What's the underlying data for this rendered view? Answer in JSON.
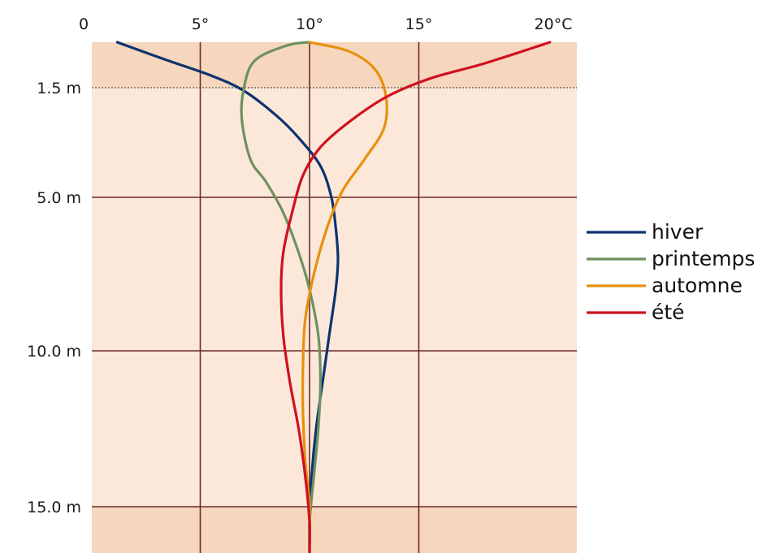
{
  "chart_data": {
    "type": "line",
    "title": "",
    "xlabel": "",
    "ylabel": "",
    "x_unit": "°C",
    "xlim": [
      0,
      20
    ],
    "ylim": [
      0,
      16.5
    ],
    "x_ticks": [
      {
        "value": 0,
        "label": "0"
      },
      {
        "value": 5,
        "label": "5°"
      },
      {
        "value": 10,
        "label": "10°"
      },
      {
        "value": 15,
        "label": "15°"
      },
      {
        "value": 20,
        "label": "20°C"
      }
    ],
    "y_ticks": [
      {
        "value": 1.5,
        "label": "1.5 m"
      },
      {
        "value": 5.0,
        "label": "5.0 m"
      },
      {
        "value": 10.0,
        "label": "10.0 m"
      },
      {
        "value": 15.0,
        "label": "15.0 m"
      }
    ],
    "y_axis_inverted": true,
    "background_colors": {
      "surface_band": "#f6d6bd",
      "main": "#fbe8d9",
      "bottom_band": "#f6d6bd"
    },
    "grid": true,
    "grid_color": "#6b2a2a",
    "legend_position": "right",
    "series": [
      {
        "name": "hiver",
        "color": "#0d3270",
        "points": [
          [
            1.2,
            0
          ],
          [
            3.5,
            0.6
          ],
          [
            5.5,
            1.1
          ],
          [
            7,
            1.6
          ],
          [
            8.5,
            2.4
          ],
          [
            9.5,
            3.1
          ],
          [
            10.5,
            4.0
          ],
          [
            11,
            5.0
          ],
          [
            11.2,
            6.0
          ],
          [
            11.3,
            7.0
          ],
          [
            11.2,
            8.0
          ],
          [
            10.9,
            9.5
          ],
          [
            10.6,
            11
          ],
          [
            10.3,
            12.5
          ],
          [
            10.1,
            14
          ],
          [
            10,
            15.5
          ],
          [
            10,
            16.5
          ]
        ]
      },
      {
        "name": "printemps",
        "color": "#6d9160",
        "points": [
          [
            10,
            0
          ],
          [
            9,
            0.1
          ],
          [
            7.5,
            0.6
          ],
          [
            7,
            1.5
          ],
          [
            6.9,
            2.5
          ],
          [
            7.3,
            3.8
          ],
          [
            8,
            4.5
          ],
          [
            8.8,
            5.5
          ],
          [
            9.5,
            6.8
          ],
          [
            10,
            8
          ],
          [
            10.4,
            9.5
          ],
          [
            10.5,
            11
          ],
          [
            10.4,
            12.5
          ],
          [
            10.2,
            14
          ],
          [
            10,
            15.5
          ],
          [
            10,
            16.5
          ]
        ]
      },
      {
        "name": "automne",
        "color": "#e8900c",
        "points": [
          [
            10,
            0
          ],
          [
            11.8,
            0.3
          ],
          [
            13,
            0.9
          ],
          [
            13.5,
            1.8
          ],
          [
            13.4,
            2.8
          ],
          [
            12.5,
            3.8
          ],
          [
            11.5,
            4.8
          ],
          [
            10.8,
            6.0
          ],
          [
            10.2,
            7.5
          ],
          [
            9.8,
            9.0
          ],
          [
            9.7,
            10.5
          ],
          [
            9.7,
            12
          ],
          [
            9.8,
            13.5
          ],
          [
            10,
            15
          ],
          [
            10,
            16.5
          ]
        ]
      },
      {
        "name": "été",
        "color": "#cf1020",
        "points": [
          [
            21,
            0
          ],
          [
            18,
            0.7
          ],
          [
            15.5,
            1.2
          ],
          [
            13.5,
            1.8
          ],
          [
            11.8,
            2.6
          ],
          [
            10.5,
            3.4
          ],
          [
            9.7,
            4.3
          ],
          [
            9.2,
            5.5
          ],
          [
            8.8,
            6.8
          ],
          [
            8.7,
            8.0
          ],
          [
            8.8,
            9.5
          ],
          [
            9.1,
            11
          ],
          [
            9.5,
            12.5
          ],
          [
            9.8,
            14
          ],
          [
            10,
            15.5
          ],
          [
            10,
            16.5
          ]
        ]
      }
    ]
  }
}
